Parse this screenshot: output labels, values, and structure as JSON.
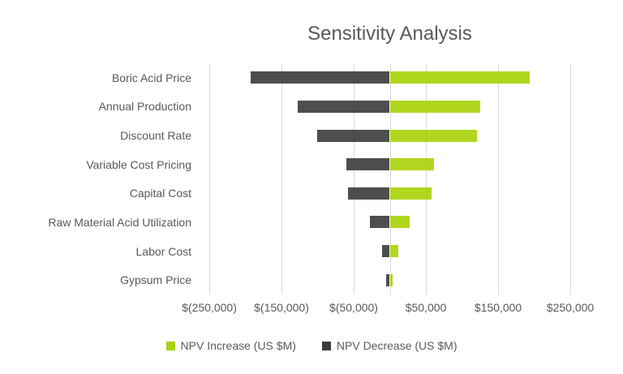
{
  "chart_data": {
    "type": "bar",
    "subtype": "tornado",
    "orientation": "horizontal",
    "title": "Sensitivity Analysis",
    "categories": [
      "Boric Acid Price",
      "Annual Production",
      "Discount Rate",
      "Variable Cost Pricing",
      "Capital Cost",
      "Raw Material Acid Utilization",
      "Labor Cost",
      "Gypsum Price"
    ],
    "series": [
      {
        "name": "NPV Increase (US $M)",
        "color": "#a8d108",
        "values": [
          194000,
          125000,
          121000,
          61000,
          58000,
          28000,
          12000,
          4300
        ]
      },
      {
        "name": "NPV Decrease (US $M)",
        "color": "#3b3b3b",
        "values": [
          -193000,
          -127000,
          -101000,
          -60000,
          -58000,
          -27000,
          -11000,
          -4700
        ]
      }
    ],
    "xlim": [
      -250000,
      250000
    ],
    "x_tick_step": 100000,
    "x_tick_labels": [
      "$(250,000)",
      "$(150,000)",
      "$(50,000)",
      "$50,000",
      "$150,000",
      "$250,000"
    ],
    "grid": true,
    "zero_axis_line": true,
    "legend_position": "bottom",
    "colors": {
      "grid": "#d9d9d9",
      "text": "#595959",
      "background": "#ffffff"
    }
  }
}
